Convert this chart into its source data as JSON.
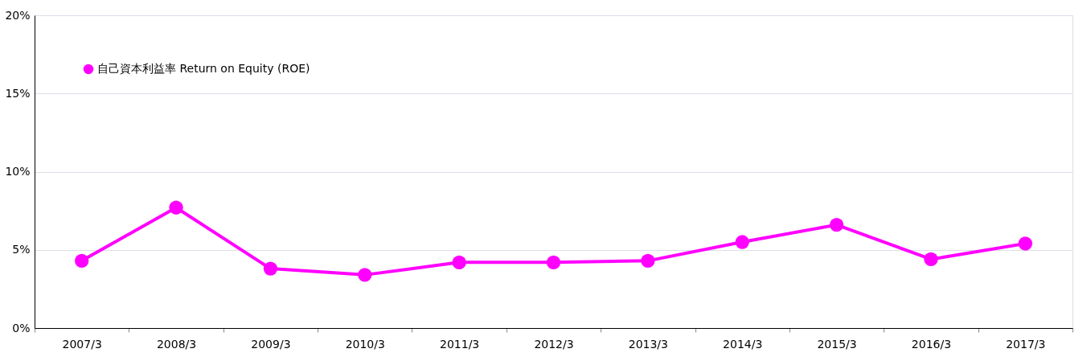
{
  "chart_data": {
    "type": "line",
    "categories": [
      "2007/3",
      "2008/3",
      "2009/3",
      "2010/3",
      "2011/3",
      "2012/3",
      "2013/3",
      "2014/3",
      "2015/3",
      "2016/3",
      "2017/3"
    ],
    "series": [
      {
        "name": "自己資本利益率 Return on Equity (ROE)",
        "color": "#ff00ff",
        "values": [
          4.3,
          7.7,
          3.8,
          3.4,
          4.2,
          4.2,
          4.3,
          5.5,
          6.6,
          4.4,
          5.4
        ]
      }
    ],
    "ylim": [
      0,
      20
    ],
    "yticks": [
      {
        "value": 0,
        "label": "0%"
      },
      {
        "value": 5,
        "label": "5%"
      },
      {
        "value": 10,
        "label": "10%"
      },
      {
        "value": 15,
        "label": "15%"
      },
      {
        "value": 20,
        "label": "20%"
      }
    ],
    "grid": "y",
    "legend": "top left",
    "marker": "circle",
    "line_style": "solid"
  }
}
